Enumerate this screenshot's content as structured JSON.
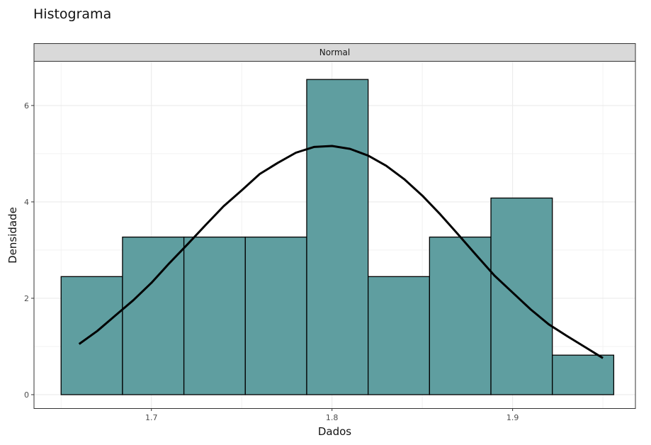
{
  "chart_data": {
    "type": "bar",
    "title": "Histograma",
    "facet_label": "Normal",
    "xlabel": "Dados",
    "ylabel": "Densidade",
    "xlim": [
      1.635,
      1.968
    ],
    "ylim": [
      -0.28,
      6.91
    ],
    "x_ticks": [
      1.7,
      1.8,
      1.9
    ],
    "x_tick_labels": [
      "1.7",
      "1.8",
      "1.9"
    ],
    "y_ticks": [
      0,
      2,
      4,
      6
    ],
    "y_tick_labels": [
      "0",
      "2",
      "4",
      "6"
    ],
    "grid": true,
    "bin_edges": [
      1.65,
      1.684,
      1.718,
      1.752,
      1.786,
      1.82,
      1.854,
      1.888,
      1.922,
      1.956
    ],
    "values": [
      2.45,
      3.27,
      3.27,
      3.27,
      6.54,
      2.45,
      3.27,
      4.08,
      0.82
    ],
    "bar_color": "#5F9EA0",
    "density_curve": {
      "x": [
        1.66,
        1.67,
        1.68,
        1.69,
        1.7,
        1.71,
        1.72,
        1.73,
        1.74,
        1.75,
        1.76,
        1.77,
        1.78,
        1.79,
        1.8,
        1.81,
        1.82,
        1.83,
        1.84,
        1.85,
        1.86,
        1.87,
        1.88,
        1.89,
        1.9,
        1.91,
        1.92,
        1.93,
        1.94,
        1.95
      ],
      "y": [
        1.05,
        1.32,
        1.64,
        1.96,
        2.32,
        2.73,
        3.12,
        3.52,
        3.91,
        4.24,
        4.58,
        4.81,
        5.02,
        5.14,
        5.16,
        5.1,
        4.96,
        4.75,
        4.47,
        4.13,
        3.74,
        3.32,
        2.89,
        2.47,
        2.12,
        1.77,
        1.46,
        1.22,
        0.99,
        0.76
      ],
      "color": "#000000"
    }
  }
}
